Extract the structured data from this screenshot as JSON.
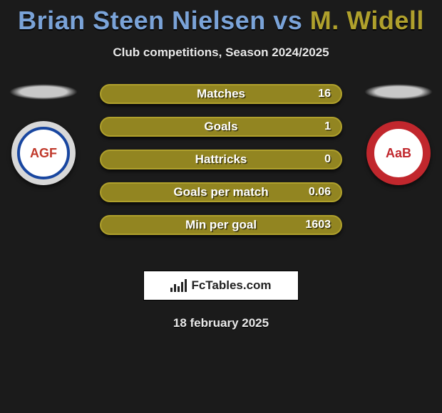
{
  "title": {
    "player1_name": "Brian Steen Nielsen",
    "vs": " vs ",
    "player2_name": "M. Widell",
    "player1_color": "#7aa3d8",
    "player2_color": "#b0a12c"
  },
  "subtitle": "Club competitions, Season 2024/2025",
  "players": {
    "left": {
      "badge_bg": "#ffffff",
      "badge_ring": "#d8d8d8",
      "inner_bg": "#ffffff",
      "inner_border": "#1846a0",
      "inner_text": "AGF",
      "inner_text_color": "#c0392b"
    },
    "right": {
      "badge_bg": "#c1272d",
      "badge_ring": "#c1272d",
      "inner_bg": "#ffffff",
      "inner_border": "#c1272d",
      "inner_text": "AaB",
      "inner_text_color": "#c1272d"
    }
  },
  "stats": [
    {
      "label": "Matches",
      "right_value": "16"
    },
    {
      "label": "Goals",
      "right_value": "1"
    },
    {
      "label": "Hattricks",
      "right_value": "0"
    },
    {
      "label": "Goals per match",
      "right_value": "0.06"
    },
    {
      "label": "Min per goal",
      "right_value": "1603"
    }
  ],
  "pill_style": {
    "fill": "#928521",
    "border": "#b0a12c"
  },
  "brand": "FcTables.com",
  "date": "18 february 2025"
}
